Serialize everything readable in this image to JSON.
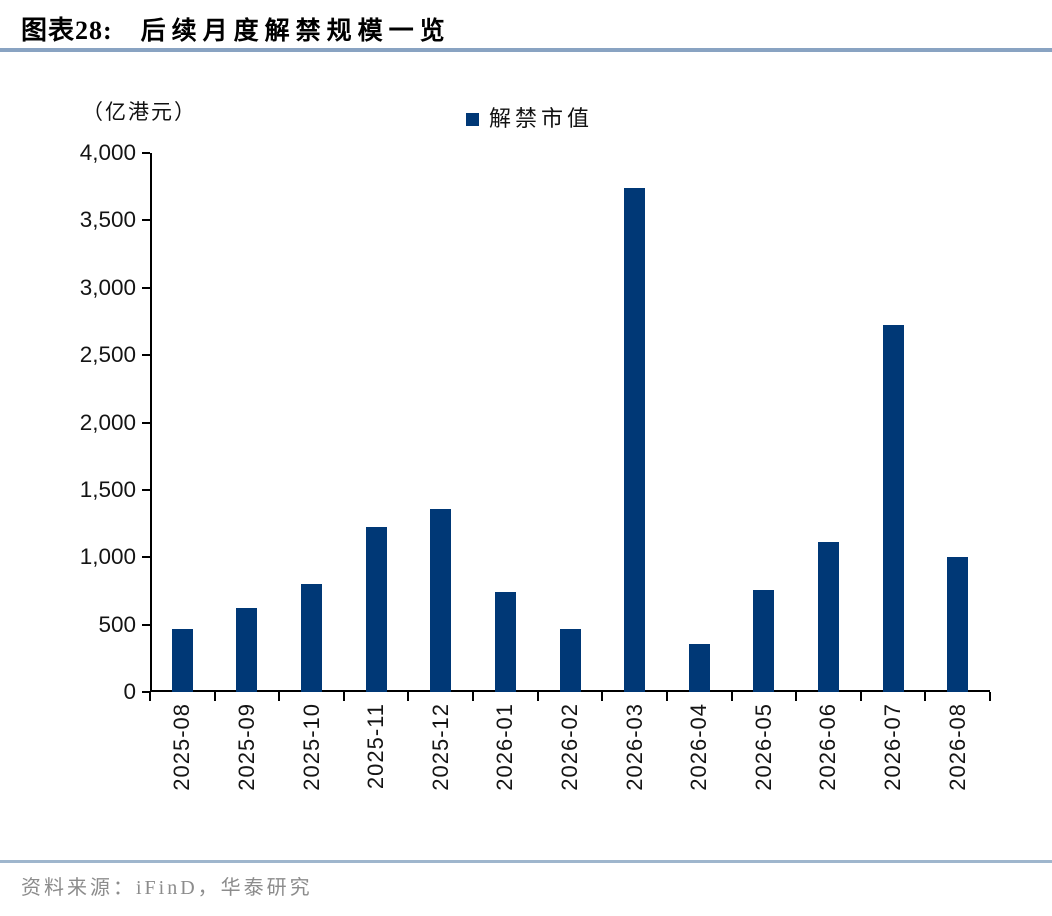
{
  "figure": {
    "label": "图表28:",
    "title": "后续月度解禁规模一览",
    "source": "资料来源：iFinD，华泰研究"
  },
  "colors": {
    "bar": "#003876",
    "rule": "#89a3c2",
    "source_text": "#8c8c8c"
  },
  "chart_data": {
    "type": "bar",
    "title": "后续月度解禁规模一览",
    "unit_label": "（亿港元）",
    "legend": [
      "解禁市值"
    ],
    "legend_position": "top-center",
    "grid": false,
    "categories": [
      "2025-08",
      "2025-09",
      "2025-10",
      "2025-11",
      "2025-12",
      "2026-01",
      "2026-02",
      "2026-03",
      "2026-04",
      "2026-05",
      "2026-06",
      "2026-07",
      "2026-08"
    ],
    "values": [
      470,
      620,
      800,
      1225,
      1360,
      740,
      470,
      3740,
      355,
      760,
      1115,
      2720,
      1005
    ],
    "xlabel": "",
    "ylabel": "（亿港元）",
    "ylim": [
      0,
      4000
    ],
    "ytick_step": 500,
    "bar_color": "#003876"
  }
}
